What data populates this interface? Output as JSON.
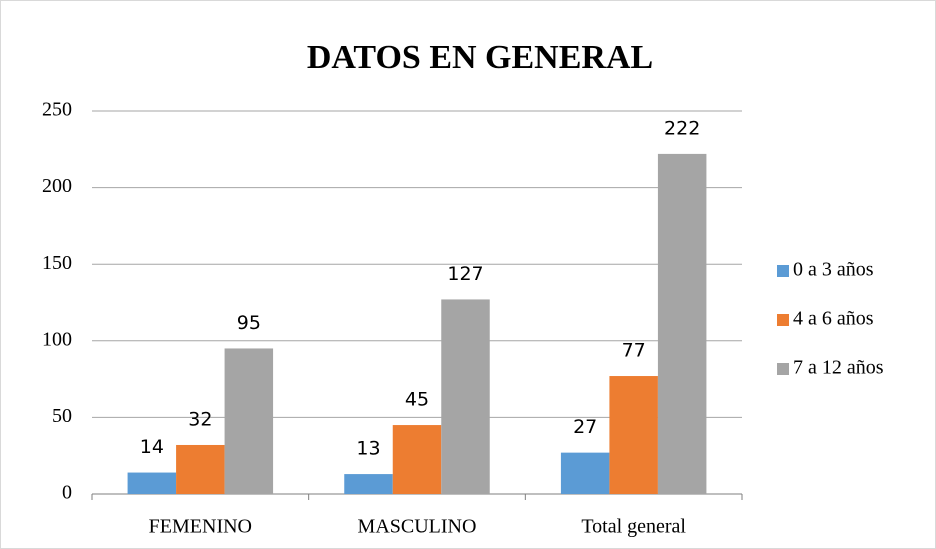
{
  "chart_data": {
    "type": "bar",
    "title": "DATOS EN GENERAL",
    "categories": [
      "FEMENINO",
      "MASCULINO",
      "Total general"
    ],
    "series": [
      {
        "name": "0 a 3 años",
        "color": "#5b9bd5",
        "values": [
          14,
          13,
          27
        ]
      },
      {
        "name": "4 a 6 años",
        "color": "#ed7d31",
        "values": [
          32,
          45,
          77
        ]
      },
      {
        "name": "7 a 12 años",
        "color": "#a5a5a5",
        "values": [
          95,
          127,
          222
        ]
      }
    ],
    "ylim": [
      0,
      250
    ],
    "yticks": [
      0,
      50,
      100,
      150,
      200,
      250
    ],
    "grid": true,
    "legend": "right"
  }
}
